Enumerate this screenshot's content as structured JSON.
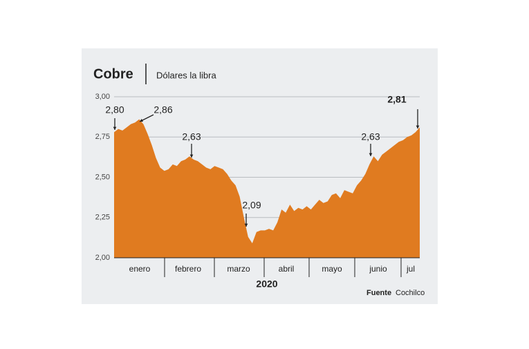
{
  "chart_data": {
    "type": "area",
    "title": "Cobre",
    "subtitle": "Dólares la libra",
    "x_label": "2020",
    "months": [
      "enero",
      "febrero",
      "marzo",
      "abril",
      "mayo",
      "junio",
      "jul"
    ],
    "values": [
      2.78,
      2.8,
      2.79,
      2.81,
      2.83,
      2.84,
      2.86,
      2.83,
      2.77,
      2.7,
      2.62,
      2.56,
      2.54,
      2.55,
      2.58,
      2.57,
      2.6,
      2.61,
      2.63,
      2.61,
      2.6,
      2.58,
      2.56,
      2.55,
      2.57,
      2.56,
      2.55,
      2.52,
      2.48,
      2.45,
      2.38,
      2.25,
      2.13,
      2.09,
      2.16,
      2.17,
      2.17,
      2.18,
      2.17,
      2.22,
      2.3,
      2.28,
      2.33,
      2.29,
      2.31,
      2.3,
      2.32,
      2.3,
      2.33,
      2.36,
      2.34,
      2.35,
      2.39,
      2.4,
      2.37,
      2.42,
      2.41,
      2.4,
      2.45,
      2.48,
      2.52,
      2.58,
      2.63,
      2.6,
      2.64,
      2.66,
      2.68,
      2.7,
      2.72,
      2.73,
      2.75,
      2.76,
      2.78,
      2.81
    ],
    "color": "#e07b20",
    "ylim": [
      2,
      3
    ],
    "yticks": [
      {
        "value": 2,
        "label": "2,00"
      },
      {
        "value": 2.25,
        "label": "2,25"
      },
      {
        "value": 2.5,
        "label": "2,50"
      },
      {
        "value": 2.75,
        "label": "2,75"
      },
      {
        "value": 3,
        "label": "3,00"
      }
    ],
    "grid": true,
    "annotations": [
      {
        "value": 2.8,
        "label": "2,80"
      },
      {
        "value": 2.86,
        "label": "2,86"
      },
      {
        "value": 2.63,
        "label": "2,63"
      },
      {
        "value": 2.09,
        "label": "2,09"
      },
      {
        "value": 2.63,
        "label": "2,63"
      },
      {
        "value": 2.81,
        "label": "2,81"
      }
    ],
    "source_label": "Fuente",
    "source": "Cochilco"
  }
}
